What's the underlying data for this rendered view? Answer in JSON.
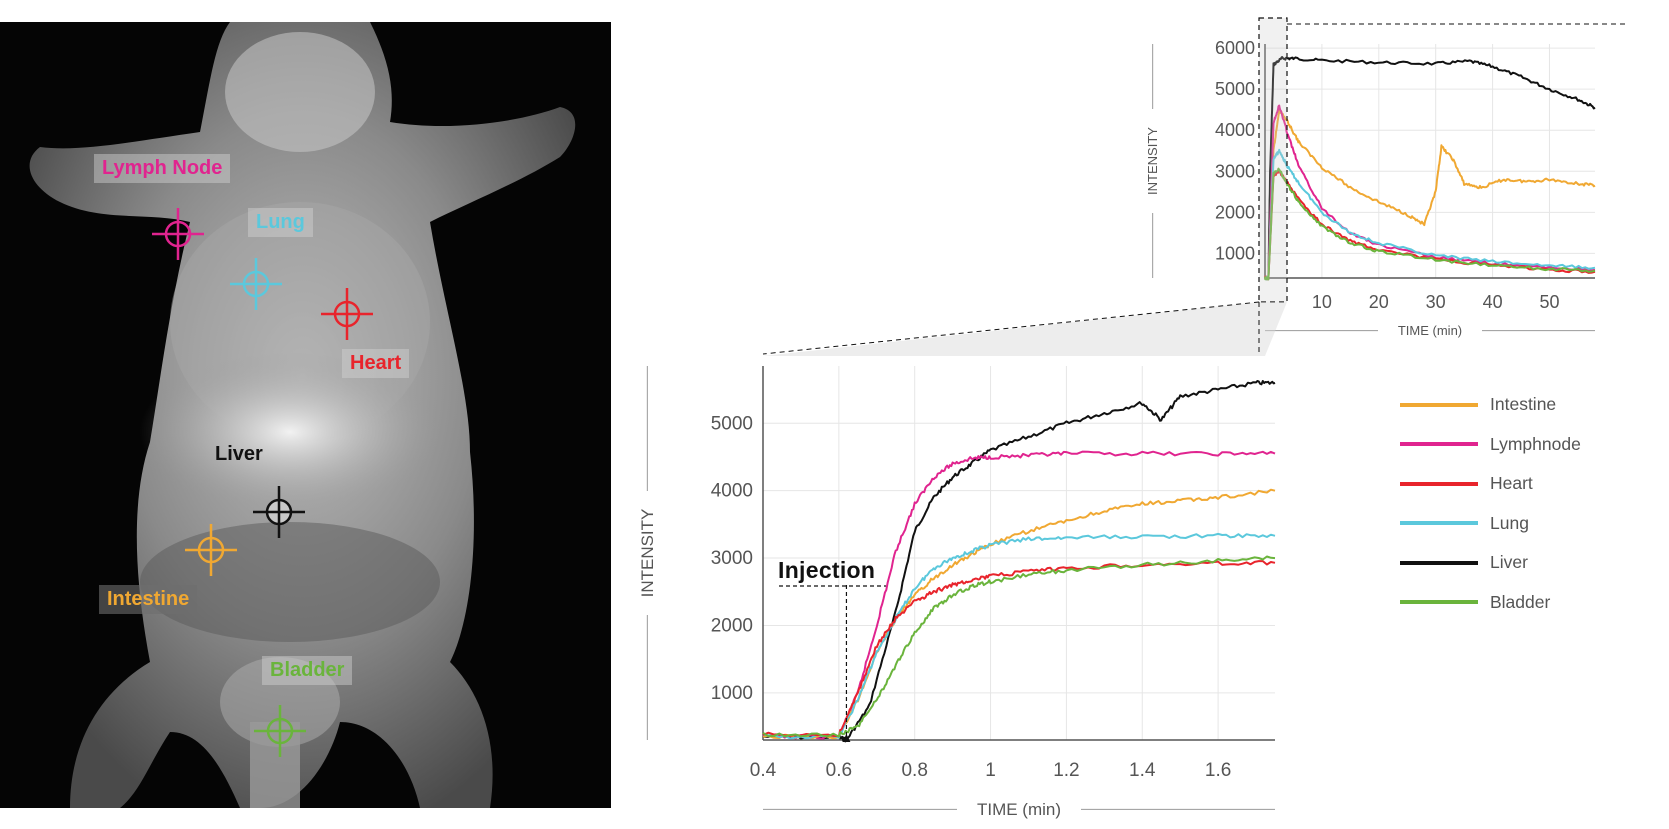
{
  "image": {
    "regions": [
      {
        "id": "lymph-node",
        "label": "Lymph Node",
        "color": "#e0248f"
      },
      {
        "id": "lung",
        "label": "Lung",
        "color": "#5bc8dc"
      },
      {
        "id": "heart",
        "label": "Heart",
        "color": "#e8242c"
      },
      {
        "id": "liver",
        "label": "Liver",
        "color": "#111111"
      },
      {
        "id": "intestine",
        "label": "Intestine",
        "color": "#f0a832"
      },
      {
        "id": "bladder",
        "label": "Bladder",
        "color": "#6ab43c"
      }
    ]
  },
  "annotation": {
    "injection": "Injection"
  },
  "legend": [
    {
      "label": "Intestine",
      "color": "#f0a832"
    },
    {
      "label": "Lymphnode",
      "color": "#e0248f"
    },
    {
      "label": "Heart",
      "color": "#e8242c"
    },
    {
      "label": "Lung",
      "color": "#5bc8dc"
    },
    {
      "label": "Liver",
      "color": "#111111"
    },
    {
      "label": "Bladder",
      "color": "#6ab43c"
    }
  ],
  "chart_data": [
    {
      "type": "line",
      "title": "",
      "xlabel": "TIME (min)",
      "ylabel": "INTENSITY",
      "xlim": [
        0,
        58
      ],
      "ylim": [
        400,
        6100
      ],
      "xticks": [
        10,
        20,
        30,
        40,
        50
      ],
      "yticks": [
        1000,
        2000,
        3000,
        4000,
        5000,
        6000
      ],
      "grid": true,
      "series": [
        {
          "name": "Liver",
          "color": "#111111",
          "x": [
            0,
            0.6,
            0.9,
            1.5,
            3,
            5,
            10,
            20,
            30,
            36,
            40,
            45,
            50,
            55,
            58
          ],
          "y": [
            400,
            400,
            3000,
            5600,
            5750,
            5750,
            5700,
            5650,
            5620,
            5680,
            5550,
            5300,
            5000,
            4750,
            4550
          ]
        },
        {
          "name": "Intestine",
          "color": "#f0a832",
          "x": [
            0,
            0.6,
            1.5,
            2.5,
            4,
            6,
            10,
            15,
            20,
            25,
            28,
            30,
            31,
            33,
            35,
            38,
            42,
            46,
            50,
            55,
            58
          ],
          "y": [
            400,
            400,
            3500,
            4500,
            4200,
            3700,
            3100,
            2600,
            2250,
            1950,
            1700,
            2500,
            3600,
            3300,
            2700,
            2600,
            2800,
            2750,
            2800,
            2700,
            2650
          ]
        },
        {
          "name": "Lymphnode",
          "color": "#e0248f",
          "x": [
            0,
            0.6,
            1.5,
            2.5,
            4,
            6,
            10,
            15,
            20,
            30,
            40,
            50,
            58
          ],
          "y": [
            400,
            400,
            4200,
            4600,
            3900,
            3100,
            2100,
            1500,
            1200,
            900,
            750,
            650,
            600
          ]
        },
        {
          "name": "Lung",
          "color": "#5bc8dc",
          "x": [
            0,
            0.6,
            1.5,
            2.5,
            4,
            6,
            10,
            15,
            20,
            30,
            40,
            50,
            58
          ],
          "y": [
            400,
            400,
            3300,
            3500,
            3100,
            2700,
            2000,
            1500,
            1250,
            950,
            800,
            700,
            650
          ]
        },
        {
          "name": "Heart",
          "color": "#e8242c",
          "x": [
            0,
            0.6,
            1.5,
            2.5,
            4,
            6,
            10,
            15,
            20,
            30,
            40,
            50,
            58
          ],
          "y": [
            400,
            400,
            2900,
            3000,
            2700,
            2300,
            1700,
            1300,
            1100,
            850,
            700,
            600,
            550
          ]
        },
        {
          "name": "Bladder",
          "color": "#6ab43c",
          "x": [
            0,
            0.6,
            1.5,
            2.5,
            4,
            6,
            10,
            15,
            20,
            30,
            40,
            50,
            58
          ],
          "y": [
            400,
            400,
            2950,
            3050,
            2650,
            2250,
            1650,
            1250,
            1050,
            850,
            700,
            620,
            580
          ]
        }
      ]
    },
    {
      "type": "line",
      "title": "",
      "xlabel": "TIME (min)",
      "ylabel": "INTENSITY",
      "xlim": [
        0.4,
        1.75
      ],
      "ylim": [
        300,
        5850
      ],
      "xticks": [
        0.4,
        0.6,
        0.8,
        1,
        1.2,
        1.4,
        1.6
      ],
      "yticks": [
        1000,
        2000,
        3000,
        4000,
        5000
      ],
      "grid": true,
      "series": [
        {
          "name": "Liver",
          "color": "#111111",
          "x": [
            0.4,
            0.6,
            0.62,
            0.68,
            0.75,
            0.8,
            0.85,
            0.9,
            0.95,
            1.0,
            1.1,
            1.2,
            1.3,
            1.4,
            1.45,
            1.5,
            1.6,
            1.7,
            1.75
          ],
          "y": [
            350,
            340,
            300,
            800,
            2200,
            3400,
            3900,
            4200,
            4400,
            4600,
            4800,
            5000,
            5150,
            5300,
            5050,
            5400,
            5500,
            5600,
            5600
          ]
        },
        {
          "name": "Lymphnode",
          "color": "#e0248f",
          "x": [
            0.4,
            0.6,
            0.65,
            0.7,
            0.75,
            0.8,
            0.85,
            0.9,
            0.95,
            1.0,
            1.1,
            1.2,
            1.4,
            1.6,
            1.75
          ],
          "y": [
            350,
            350,
            1000,
            2000,
            3100,
            3800,
            4200,
            4400,
            4480,
            4500,
            4520,
            4550,
            4550,
            4550,
            4550
          ]
        },
        {
          "name": "Intestine",
          "color": "#f0a832",
          "x": [
            0.4,
            0.6,
            0.65,
            0.7,
            0.75,
            0.8,
            0.85,
            0.9,
            0.95,
            1.0,
            1.1,
            1.2,
            1.3,
            1.4,
            1.5,
            1.6,
            1.75
          ],
          "y": [
            350,
            350,
            900,
            1600,
            2100,
            2450,
            2700,
            2900,
            3050,
            3200,
            3400,
            3550,
            3700,
            3800,
            3850,
            3900,
            4000
          ]
        },
        {
          "name": "Lung",
          "color": "#5bc8dc",
          "x": [
            0.4,
            0.6,
            0.65,
            0.7,
            0.75,
            0.8,
            0.85,
            0.9,
            0.95,
            1.0,
            1.1,
            1.2,
            1.4,
            1.6,
            1.75
          ],
          "y": [
            350,
            350,
            900,
            1600,
            2100,
            2550,
            2850,
            3000,
            3100,
            3200,
            3280,
            3300,
            3320,
            3330,
            3330
          ]
        },
        {
          "name": "Heart",
          "color": "#e8242c",
          "x": [
            0.4,
            0.6,
            0.65,
            0.7,
            0.75,
            0.8,
            0.85,
            0.9,
            0.95,
            1.0,
            1.1,
            1.2,
            1.4,
            1.6,
            1.75
          ],
          "y": [
            380,
            380,
            1000,
            1700,
            2100,
            2350,
            2500,
            2600,
            2680,
            2730,
            2800,
            2850,
            2900,
            2920,
            2930
          ]
        },
        {
          "name": "Bladder",
          "color": "#6ab43c",
          "x": [
            0.4,
            0.6,
            0.65,
            0.7,
            0.75,
            0.8,
            0.85,
            0.9,
            0.95,
            1.0,
            1.1,
            1.2,
            1.4,
            1.6,
            1.75
          ],
          "y": [
            380,
            380,
            500,
            900,
            1400,
            1900,
            2250,
            2450,
            2580,
            2650,
            2750,
            2820,
            2900,
            2960,
            3000
          ]
        }
      ]
    }
  ]
}
